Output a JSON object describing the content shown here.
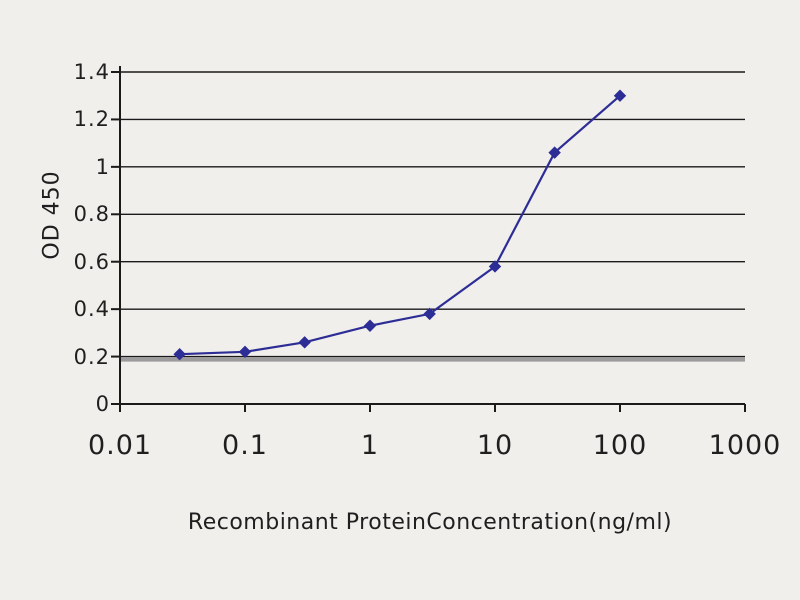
{
  "page": {
    "background": "#f1efec"
  },
  "chart_data": {
    "type": "line",
    "title": "",
    "xlabel": "Recombinant ProteinConcentration(ng/ml)",
    "ylabel": "OD 450",
    "x_scale": "log",
    "xlim": [
      0.01,
      1000
    ],
    "ylim": [
      0,
      1.4
    ],
    "x_tick_values": [
      0.01,
      0.1,
      1,
      10,
      100,
      1000
    ],
    "x_tick_labels": [
      "0.01",
      "0.1",
      "1",
      "10",
      "100",
      "1000"
    ],
    "y_tick_values": [
      0,
      0.2,
      0.4,
      0.6,
      0.8,
      1,
      1.2,
      1.4
    ],
    "y_tick_labels": [
      "0",
      "0.2",
      "0.4",
      "0.6",
      "0.8",
      "1",
      "1.2",
      "1.4"
    ],
    "grid": "horizontal",
    "legend": "none",
    "colors": {
      "series": "#2d2d96",
      "grid": "#1a1a1a",
      "axis": "#1a1a1a",
      "baseline_band": "#9c9c9c",
      "text": "#1f1f1f"
    },
    "baseline_band": {
      "value": 0.2,
      "color": "#9c9c9c"
    },
    "series": [
      {
        "name": "OD 450",
        "color": "#2d2d96",
        "marker": "diamond",
        "x": [
          0.03,
          0.1,
          0.3,
          1,
          3,
          10,
          30,
          100
        ],
        "y": [
          0.21,
          0.22,
          0.26,
          0.33,
          0.38,
          0.58,
          1.06,
          1.3
        ]
      }
    ]
  }
}
